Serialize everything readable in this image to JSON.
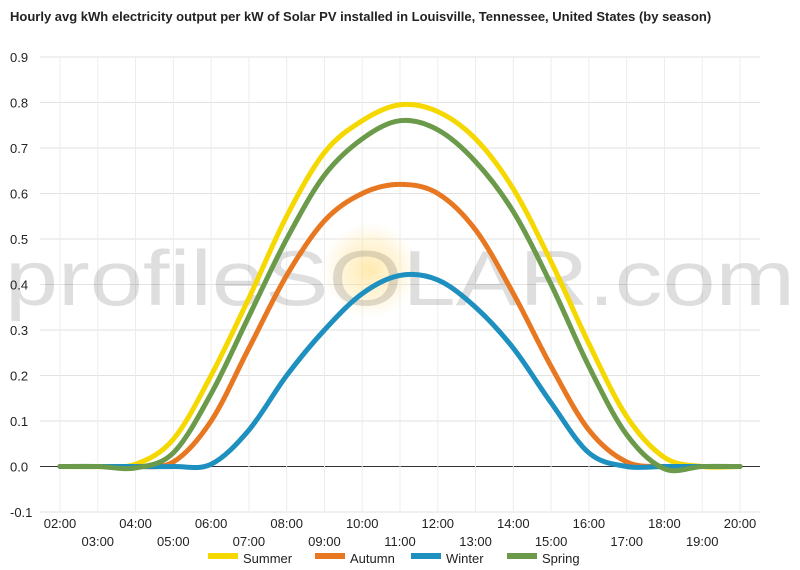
{
  "chart_data": {
    "type": "line",
    "title": "Hourly avg kWh electricity output per kW of Solar PV installed in Louisville, Tennessee, United States (by season)",
    "xlabel": "",
    "ylabel": "",
    "ylim": [
      -0.1,
      0.9
    ],
    "yticks": [
      "-0.1",
      "0.0",
      "0.1",
      "0.2",
      "0.3",
      "0.4",
      "0.5",
      "0.6",
      "0.7",
      "0.8",
      "0.9"
    ],
    "x": [
      "02:00",
      "03:00",
      "04:00",
      "05:00",
      "06:00",
      "07:00",
      "08:00",
      "09:00",
      "10:00",
      "11:00",
      "12:00",
      "13:00",
      "14:00",
      "15:00",
      "16:00",
      "17:00",
      "18:00",
      "19:00",
      "20:00"
    ],
    "grid": true,
    "legend_position": "bottom",
    "series": [
      {
        "name": "Summer",
        "color": "#f5d800",
        "values": [
          0.0,
          0.0,
          0.005,
          0.06,
          0.2,
          0.37,
          0.55,
          0.69,
          0.76,
          0.795,
          0.78,
          0.72,
          0.61,
          0.45,
          0.27,
          0.11,
          0.02,
          0.0,
          0.0
        ]
      },
      {
        "name": "Autumn",
        "color": "#e87722",
        "values": [
          0.0,
          0.0,
          0.0,
          0.01,
          0.1,
          0.26,
          0.42,
          0.54,
          0.6,
          0.62,
          0.6,
          0.52,
          0.38,
          0.22,
          0.08,
          0.01,
          0.0,
          0.0,
          0.0
        ]
      },
      {
        "name": "Winter",
        "color": "#1e90c0",
        "values": [
          0.0,
          0.0,
          0.0,
          0.0,
          0.005,
          0.08,
          0.2,
          0.3,
          0.38,
          0.42,
          0.41,
          0.35,
          0.26,
          0.14,
          0.03,
          0.0,
          0.0,
          0.0,
          0.0
        ]
      },
      {
        "name": "Spring",
        "color": "#6a9a4a",
        "values": [
          0.0,
          0.0,
          -0.003,
          0.03,
          0.16,
          0.33,
          0.5,
          0.64,
          0.72,
          0.76,
          0.74,
          0.67,
          0.56,
          0.4,
          0.22,
          0.07,
          -0.005,
          0.0,
          0.0
        ]
      }
    ],
    "watermark": "profileSOLAR.com"
  }
}
